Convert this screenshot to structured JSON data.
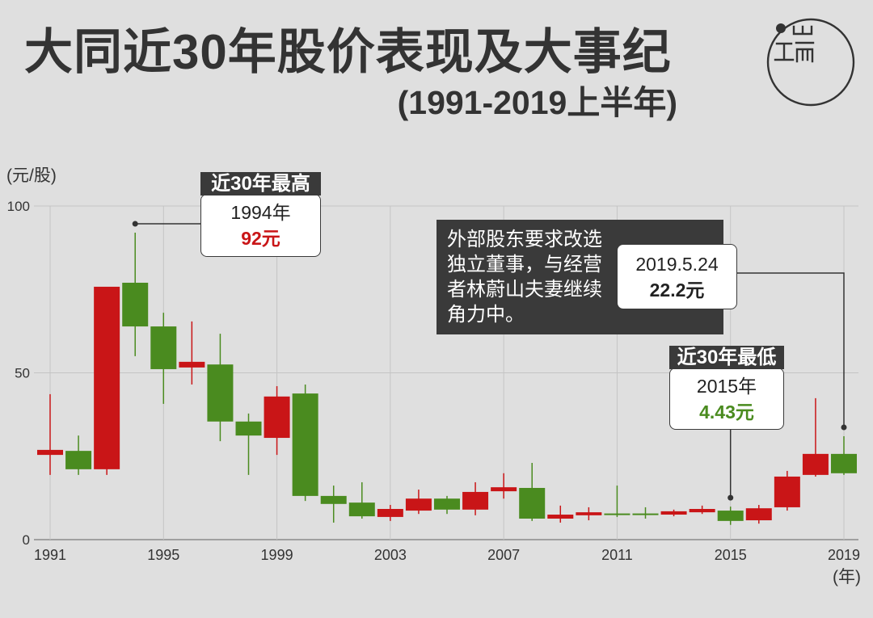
{
  "colors": {
    "background": "#dfdfdf",
    "text": "#333333",
    "dark_box": "#3a3a3a",
    "up": "#c91517",
    "down": "#4a8b1f",
    "grid": "#c4c4c4",
    "axis": "#8c8c8c"
  },
  "chart_data": {
    "type": "bar",
    "variant": "candlestick",
    "title": "大同近30年股价表现及大事纪",
    "subtitle": "(1991-2019上半年)",
    "ylabel": "(元/股)",
    "xlabel": "(年)",
    "xlim": [
      1991,
      2019
    ],
    "ylim": [
      0,
      100
    ],
    "xticks": [
      1991,
      1995,
      1999,
      2003,
      2007,
      2011,
      2015,
      2019
    ],
    "yticks": [
      0,
      50,
      100
    ],
    "grid": true,
    "candles": [
      {
        "year": 1991,
        "open": 25.4,
        "close": 26.9,
        "high": 43.6,
        "low": 19.4
      },
      {
        "year": 1992,
        "open": 26.6,
        "close": 21.1,
        "high": 31.2,
        "low": 19.4
      },
      {
        "year": 1993,
        "open": 21.1,
        "close": 75.8,
        "high": 75.8,
        "low": 19.4
      },
      {
        "year": 1994,
        "open": 77.0,
        "close": 63.9,
        "high": 92.0,
        "low": 55.0
      },
      {
        "year": 1995,
        "open": 63.9,
        "close": 51.1,
        "high": 68.0,
        "low": 40.7
      },
      {
        "year": 1996,
        "open": 51.6,
        "close": 53.3,
        "high": 65.4,
        "low": 46.5
      },
      {
        "year": 1997,
        "open": 52.5,
        "close": 35.4,
        "high": 61.7,
        "low": 29.5
      },
      {
        "year": 1998,
        "open": 35.4,
        "close": 31.2,
        "high": 37.8,
        "low": 19.4
      },
      {
        "year": 1999,
        "open": 30.5,
        "close": 42.9,
        "high": 46.0,
        "low": 25.4
      },
      {
        "year": 2000,
        "open": 43.8,
        "close": 13.1,
        "high": 46.5,
        "low": 11.6
      },
      {
        "year": 2001,
        "open": 13.1,
        "close": 10.7,
        "high": 16.2,
        "low": 5.1
      },
      {
        "year": 2002,
        "open": 11.1,
        "close": 7.0,
        "high": 17.2,
        "low": 6.3
      },
      {
        "year": 2003,
        "open": 6.8,
        "close": 9.2,
        "high": 10.4,
        "low": 5.6
      },
      {
        "year": 2004,
        "open": 8.7,
        "close": 12.3,
        "high": 15.0,
        "low": 7.7
      },
      {
        "year": 2005,
        "open": 12.3,
        "close": 9.0,
        "high": 13.1,
        "low": 7.7
      },
      {
        "year": 2006,
        "open": 9.0,
        "close": 14.3,
        "high": 17.2,
        "low": 7.3
      },
      {
        "year": 2007,
        "open": 14.5,
        "close": 15.7,
        "high": 19.9,
        "low": 12.3
      },
      {
        "year": 2008,
        "open": 15.5,
        "close": 6.3,
        "high": 23.0,
        "low": 5.6
      },
      {
        "year": 2009,
        "open": 6.3,
        "close": 7.5,
        "high": 10.2,
        "low": 5.1
      },
      {
        "year": 2010,
        "open": 7.3,
        "close": 8.2,
        "high": 9.7,
        "low": 5.8
      },
      {
        "year": 2011,
        "open": 7.7,
        "close": 7.5,
        "high": 16.2,
        "low": 6.8
      },
      {
        "year": 2012,
        "open": 7.7,
        "close": 7.5,
        "high": 9.7,
        "low": 6.3
      },
      {
        "year": 2013,
        "open": 7.5,
        "close": 8.5,
        "high": 9.0,
        "low": 7.0
      },
      {
        "year": 2014,
        "open": 8.2,
        "close": 9.2,
        "high": 10.2,
        "low": 7.7
      },
      {
        "year": 2015,
        "open": 8.7,
        "close": 5.6,
        "high": 9.9,
        "low": 4.43
      },
      {
        "year": 2016,
        "open": 5.8,
        "close": 9.4,
        "high": 10.4,
        "low": 4.8
      },
      {
        "year": 2017,
        "open": 9.7,
        "close": 18.9,
        "high": 20.6,
        "low": 8.7
      },
      {
        "year": 2018,
        "open": 19.4,
        "close": 25.7,
        "high": 42.4,
        "low": 18.9
      },
      {
        "year": 2019,
        "open": 25.7,
        "close": 19.9,
        "high": 31.0,
        "low": 19.4
      }
    ],
    "annotations": {
      "high": {
        "tag": "近30年最高",
        "line1": "1994年",
        "line2": "92元",
        "year": 1994
      },
      "event": {
        "lines": [
          "外部股东要求改选",
          "独立董事，与经营",
          "者林蔚山夫妻继续",
          "角力中。"
        ],
        "line1": "2019.5.24",
        "line2": "22.2元",
        "year": 2019
      },
      "low": {
        "tag": "近30年最低",
        "line1": "2015年",
        "line2": "4.43元",
        "year": 2015
      }
    }
  }
}
